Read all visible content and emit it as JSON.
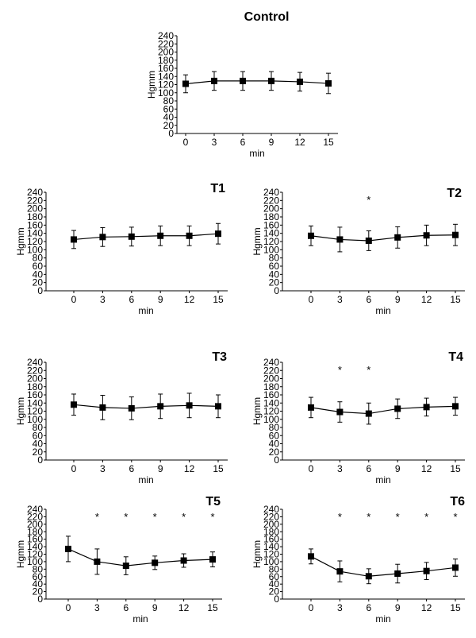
{
  "chart_data": [
    {
      "type": "line",
      "title": "Control",
      "xlabel": "min",
      "ylabel": "Hgmm",
      "x": [
        0,
        3,
        6,
        9,
        12,
        15
      ],
      "yticks": [
        0,
        20,
        40,
        60,
        80,
        100,
        120,
        140,
        160,
        180,
        200,
        220,
        240
      ],
      "ylim": [
        0,
        240
      ],
      "values": [
        122,
        129,
        129,
        129,
        127,
        123
      ],
      "errors": [
        22,
        23,
        23,
        23,
        23,
        25
      ],
      "significant": []
    },
    {
      "type": "line",
      "title": "T1",
      "xlabel": "min",
      "ylabel": "Hgmm",
      "x": [
        0,
        3,
        6,
        9,
        12,
        15
      ],
      "yticks": [
        0,
        20,
        40,
        60,
        80,
        100,
        120,
        140,
        160,
        180,
        200,
        220,
        240
      ],
      "ylim": [
        0,
        240
      ],
      "values": [
        125,
        131,
        132,
        134,
        134,
        139
      ],
      "errors": [
        22,
        23,
        23,
        24,
        24,
        25
      ],
      "significant": []
    },
    {
      "type": "line",
      "title": "T2",
      "xlabel": "min",
      "ylabel": "Hgmm",
      "x": [
        0,
        3,
        6,
        9,
        12,
        15
      ],
      "yticks": [
        0,
        20,
        40,
        60,
        80,
        100,
        120,
        140,
        160,
        180,
        200,
        220,
        240
      ],
      "ylim": [
        0,
        240
      ],
      "values": [
        134,
        125,
        122,
        130,
        135,
        136
      ],
      "errors": [
        24,
        30,
        24,
        26,
        25,
        26
      ],
      "significant": [
        "",
        "",
        "*",
        "",
        "",
        ""
      ]
    },
    {
      "type": "line",
      "title": "T3",
      "xlabel": "min",
      "ylabel": "Hgmm",
      "x": [
        0,
        3,
        6,
        9,
        12,
        15
      ],
      "yticks": [
        0,
        20,
        40,
        60,
        80,
        100,
        120,
        140,
        160,
        180,
        200,
        220,
        240
      ],
      "ylim": [
        0,
        240
      ],
      "values": [
        136,
        129,
        127,
        132,
        134,
        132
      ],
      "errors": [
        26,
        30,
        28,
        30,
        30,
        28
      ],
      "significant": []
    },
    {
      "type": "line",
      "title": "T4",
      "xlabel": "min",
      "ylabel": "Hgmm",
      "x": [
        0,
        3,
        6,
        9,
        12,
        15
      ],
      "yticks": [
        0,
        20,
        40,
        60,
        80,
        100,
        120,
        140,
        160,
        180,
        200,
        220,
        240
      ],
      "ylim": [
        0,
        240
      ],
      "values": [
        129,
        118,
        114,
        126,
        130,
        132
      ],
      "errors": [
        25,
        25,
        26,
        24,
        22,
        22
      ],
      "significant": [
        "",
        "*",
        "*",
        "",
        "",
        ""
      ]
    },
    {
      "type": "line",
      "title": "T5",
      "xlabel": "min",
      "ylabel": "Hgmm",
      "x": [
        0,
        3,
        6,
        9,
        12,
        15
      ],
      "yticks": [
        0,
        20,
        40,
        60,
        80,
        100,
        120,
        140,
        160,
        180,
        200,
        220,
        240
      ],
      "ylim": [
        0,
        240
      ],
      "values": [
        134,
        100,
        89,
        97,
        103,
        106
      ],
      "errors": [
        34,
        34,
        24,
        18,
        18,
        20
      ],
      "significant": [
        "",
        "*",
        "*",
        "*",
        "*",
        "*"
      ]
    },
    {
      "type": "line",
      "title": "T6",
      "xlabel": "min",
      "ylabel": "Hgmm",
      "x": [
        0,
        3,
        6,
        9,
        12,
        15
      ],
      "yticks": [
        0,
        20,
        40,
        60,
        80,
        100,
        120,
        140,
        160,
        180,
        200,
        220,
        240
      ],
      "ylim": [
        0,
        240
      ],
      "values": [
        114,
        74,
        61,
        68,
        75,
        84
      ],
      "errors": [
        20,
        28,
        20,
        25,
        23,
        23
      ],
      "significant": [
        "",
        "*",
        "*",
        "*",
        "*",
        "*"
      ]
    }
  ]
}
